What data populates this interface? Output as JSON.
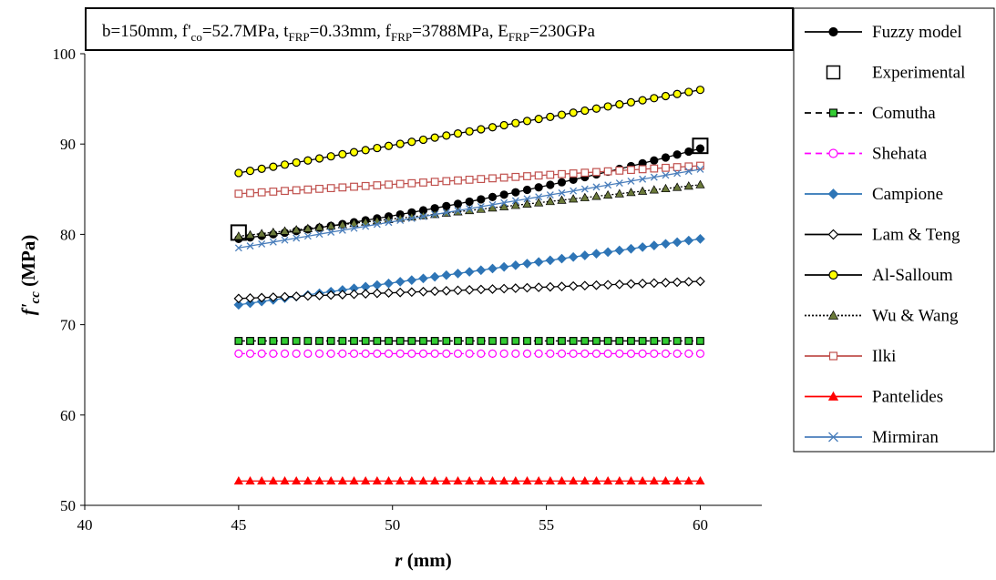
{
  "chart_data": {
    "type": "line",
    "xlabel": "r",
    "xlabel_unit": "(mm)",
    "ylabel": "f'",
    "ylabel_sub": "cc",
    "ylabel_unit": "(MPa)",
    "xlim": [
      40,
      62
    ],
    "ylim": [
      50,
      100
    ],
    "x_ticks": [
      40,
      45,
      50,
      55,
      60
    ],
    "y_ticks": [
      50,
      60,
      70,
      80,
      90,
      100
    ],
    "grid": false,
    "legend_position": "right",
    "params": [
      {
        "base": "b=150mm,"
      },
      {
        "base": "f'",
        "sub": "co",
        "rest": "=52.7MPa,"
      },
      {
        "base": "t",
        "sub": "FRP",
        "rest": "=0.33mm,"
      },
      {
        "base": "f",
        "sub": "FRP",
        "rest": "=3788MPa,"
      },
      {
        "base": "E",
        "sub": "FRP",
        "rest": "=230GPa"
      }
    ],
    "x_range": [
      45,
      60
    ],
    "x_step": 0.375,
    "series": [
      {
        "name": "Fuzzy model",
        "y_start": 79.5,
        "y_end": 89.5,
        "curve": 0.35,
        "color": "#000000",
        "marker": "circle",
        "fill": "#000000",
        "stroke": "#000000",
        "dash": "solid"
      },
      {
        "name": "Experimental",
        "points": [
          [
            45,
            80.2
          ],
          [
            60,
            89.8
          ]
        ],
        "color": "#000000",
        "marker": "square-open",
        "fill": "none",
        "stroke": "#000000",
        "line": false
      },
      {
        "name": "Comutha",
        "y_start": 68.2,
        "y_end": 68.2,
        "color": "#000000",
        "marker": "square",
        "fill": "#33cc33",
        "stroke": "#000000",
        "dash": "dashed"
      },
      {
        "name": "Shehata",
        "y_start": 66.8,
        "y_end": 66.8,
        "color": "#ff00ff",
        "marker": "circle-open",
        "fill": "#ffffff",
        "stroke": "#ff00ff",
        "dash": "dashed"
      },
      {
        "name": "Campione",
        "y_start": 72.2,
        "y_end": 79.5,
        "color": "#2e75b6",
        "marker": "diamond",
        "fill": "#2e75b6",
        "stroke": "#2e75b6",
        "dash": "solid"
      },
      {
        "name": "Lam & Teng",
        "y_start": 72.9,
        "y_end": 74.8,
        "color": "#000000",
        "marker": "diamond-open",
        "fill": "#ffffff",
        "stroke": "#000000",
        "dash": "solid"
      },
      {
        "name": "Al-Salloum",
        "y_start": 86.8,
        "y_end": 96.0,
        "color": "#000000",
        "marker": "circle",
        "fill": "#ffff00",
        "stroke": "#000000",
        "dash": "solid"
      },
      {
        "name": "Wu & Wang",
        "y_start": 79.8,
        "y_end": 85.5,
        "color": "#000000",
        "marker": "triangle",
        "fill": "#6b7a3a",
        "stroke": "#000000",
        "dash": "dotted"
      },
      {
        "name": "Ilki",
        "y_start": 84.5,
        "y_end": 87.6,
        "color": "#c0504d",
        "marker": "square-open",
        "fill": "#ffffff",
        "stroke": "#c0504d",
        "dash": "solid"
      },
      {
        "name": "Pantelides",
        "y_start": 52.7,
        "y_end": 52.7,
        "color": "#ff0000",
        "marker": "triangle",
        "fill": "#ff0000",
        "stroke": "#ff0000",
        "dash": "solid"
      },
      {
        "name": "Mirmiran",
        "y_start": 78.5,
        "y_end": 87.2,
        "color": "#4a7ebb",
        "marker": "x",
        "fill": "none",
        "stroke": "#4a7ebb",
        "dash": "solid"
      }
    ]
  }
}
